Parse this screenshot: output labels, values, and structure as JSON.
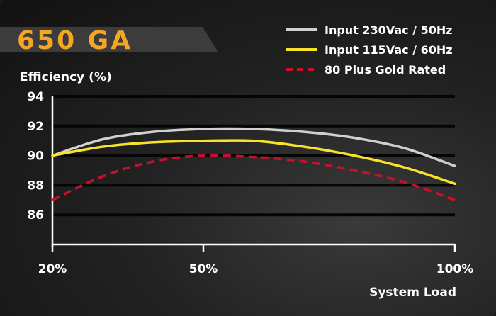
{
  "chart_data": {
    "type": "line",
    "title": "650 GA",
    "xlabel": "System Load",
    "ylabel": "Efficiency (%)",
    "x": [
      20,
      30,
      40,
      50,
      60,
      70,
      80,
      90,
      100
    ],
    "x_ticks": [
      20,
      50,
      100
    ],
    "x_tick_labels": [
      "20%",
      "50%",
      "100%"
    ],
    "xlim": [
      20,
      100
    ],
    "ylim": [
      84,
      94
    ],
    "y_ticks": [
      86,
      88,
      90,
      92,
      94
    ],
    "y_tick_labels": [
      "86",
      "88",
      "90",
      "92",
      "94"
    ],
    "legend_position": "top-right",
    "grid": true,
    "series": [
      {
        "name": "Input 230Vac / 50Hz",
        "color": "#d0d0d0",
        "dashed": false,
        "values": [
          90.0,
          91.1,
          91.6,
          91.8,
          91.8,
          91.6,
          91.2,
          90.5,
          89.3
        ]
      },
      {
        "name": "Input 115Vac / 60Hz",
        "color": "#f6e32a",
        "dashed": false,
        "values": [
          90.0,
          90.6,
          90.9,
          91.0,
          91.0,
          90.6,
          90.0,
          89.2,
          88.1
        ]
      },
      {
        "name": "80 Plus Gold Rated",
        "color": "#c8102e",
        "dashed": true,
        "values": [
          87.0,
          88.6,
          89.6,
          90.0,
          89.9,
          89.6,
          89.0,
          88.2,
          87.0
        ]
      }
    ]
  }
}
